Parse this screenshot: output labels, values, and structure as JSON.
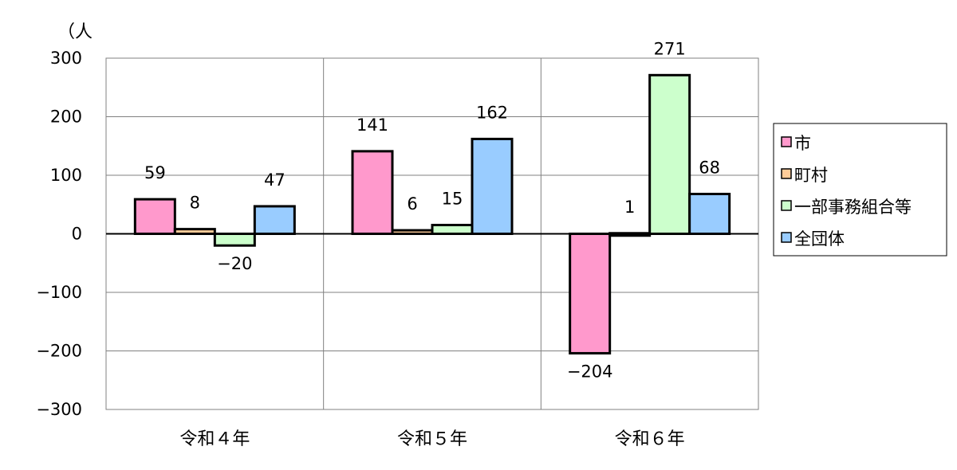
{
  "chart_data": {
    "type": "bar",
    "unit_label": "（人",
    "categories": [
      "令和４年",
      "令和５年",
      "令和６年"
    ],
    "series": [
      {
        "name": "市",
        "values": [
          59,
          141,
          -204
        ],
        "color": "#ff99cc"
      },
      {
        "name": "町村",
        "values": [
          8,
          6,
          1
        ],
        "color": "#ffcc99"
      },
      {
        "name": "一部事務組合等",
        "values": [
          -20,
          15,
          271
        ],
        "color": "#ccffcc"
      },
      {
        "name": "全団体",
        "values": [
          47,
          162,
          68
        ],
        "color": "#99ccff"
      }
    ],
    "ylim": [
      -300,
      300
    ],
    "yticks": [
      300,
      200,
      100,
      0,
      -100,
      -200,
      -300
    ],
    "ytick_labels": [
      "300",
      "200",
      "100",
      "0",
      "−100",
      "−200",
      "−300"
    ],
    "data_labels": [
      [
        "59",
        "141",
        "−204"
      ],
      [
        "8",
        "6",
        "1"
      ],
      [
        "−20",
        "15",
        "271"
      ],
      [
        "47",
        "162",
        "68"
      ]
    ],
    "grid": true,
    "legend_position": "right"
  }
}
